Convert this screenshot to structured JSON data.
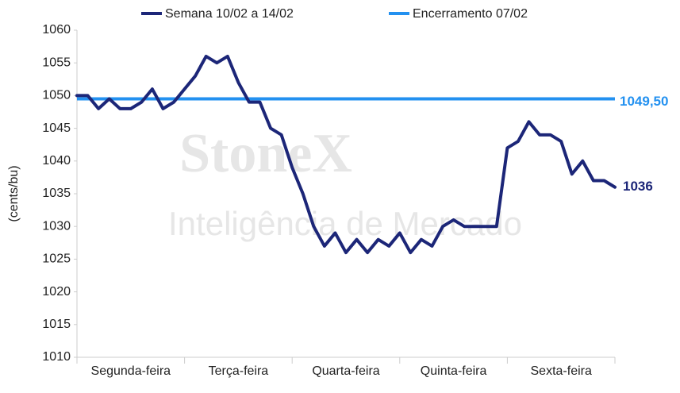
{
  "chart_data": {
    "type": "line",
    "watermark": {
      "brand": "StoneX",
      "tagline": "Inteligência de Mercado"
    },
    "y_label": "(cents/bu)",
    "categories": [
      null,
      null,
      null,
      null,
      null,
      "Segunda-feira",
      null,
      null,
      null,
      null,
      null,
      null,
      null,
      null,
      null,
      "Terça-feira",
      null,
      null,
      null,
      null,
      null,
      null,
      null,
      null,
      null,
      "Quarta-feira",
      null,
      null,
      null,
      null,
      null,
      null,
      null,
      null,
      null,
      "Quinta-feira",
      null,
      null,
      null,
      null,
      null,
      null,
      null,
      null,
      null,
      "Sexta-feira",
      null,
      null,
      null,
      null,
      null
    ],
    "series": [
      {
        "name": "Semana 10/02 a 14/02",
        "color": "#1c2678",
        "values": [
          1050,
          1050,
          1048,
          1049.5,
          1048,
          1048,
          1049,
          1051,
          1048,
          1049,
          1051,
          1053,
          1056,
          1055,
          1056,
          1052,
          1049,
          1049,
          1045,
          1044,
          1039,
          1035,
          1030,
          1027,
          1029,
          1026,
          1028,
          1026,
          1028,
          1027,
          1029,
          1026,
          1028,
          1027,
          1030,
          1031,
          1030,
          1030,
          1030,
          1030,
          1042,
          1043,
          1046,
          1044,
          1044,
          1043,
          1038,
          1040,
          1037,
          1037,
          1036
        ]
      },
      {
        "name": "Encerramento 07/02",
        "color": "#2391f0",
        "value": 1049.5,
        "value_label": "1049,50"
      }
    ],
    "ylim": [
      1010,
      1060
    ],
    "yticks": [
      1010,
      1015,
      1020,
      1025,
      1030,
      1035,
      1040,
      1045,
      1050,
      1055,
      1060
    ],
    "grid": false
  }
}
